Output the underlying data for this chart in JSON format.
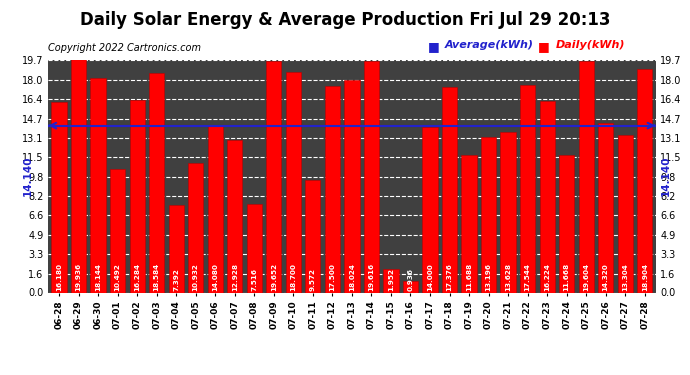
{
  "title": "Daily Solar Energy & Average Production Fri Jul 29 20:13",
  "copyright": "Copyright 2022 Cartronics.com",
  "average_label": "Average(kWh)",
  "daily_label": "Daily(kWh)",
  "average_value": 14.14,
  "average_text": "14.140",
  "categories": [
    "06-28",
    "06-29",
    "06-30",
    "07-01",
    "07-02",
    "07-03",
    "07-04",
    "07-05",
    "07-06",
    "07-07",
    "07-08",
    "07-09",
    "07-10",
    "07-11",
    "07-12",
    "07-13",
    "07-14",
    "07-15",
    "07-16",
    "07-17",
    "07-18",
    "07-19",
    "07-20",
    "07-21",
    "07-22",
    "07-23",
    "07-24",
    "07-25",
    "07-26",
    "07-27",
    "07-28"
  ],
  "values": [
    16.18,
    19.936,
    18.144,
    10.492,
    16.284,
    18.584,
    7.392,
    10.932,
    14.08,
    12.928,
    7.516,
    19.652,
    18.7,
    9.572,
    17.5,
    18.024,
    19.616,
    1.952,
    0.936,
    14.0,
    17.376,
    11.688,
    13.196,
    13.628,
    17.544,
    16.224,
    11.668,
    19.604,
    14.32,
    13.304,
    18.904
  ],
  "bar_color": "#ff0000",
  "bar_edge_color": "#bb0000",
  "avg_line_color": "#2222cc",
  "avg_text_color": "#2222cc",
  "title_color": "#000000",
  "copyright_color": "#000000",
  "daily_label_color": "#ff0000",
  "avg_label_color": "#2222cc",
  "bar_text_color": "#ffffff",
  "ylim": [
    0.0,
    19.7
  ],
  "yticks": [
    0.0,
    1.6,
    3.3,
    4.9,
    6.6,
    8.2,
    9.8,
    11.5,
    13.1,
    14.7,
    16.4,
    18.0,
    19.7
  ],
  "plot_bg_color": "#404040",
  "figure_bg_color": "#ffffff",
  "grid_color": "#ffffff",
  "title_fontsize": 12,
  "copyright_fontsize": 7,
  "bar_label_fontsize": 5.2,
  "ytick_fontsize": 7,
  "xtick_fontsize": 6.5,
  "legend_fontsize": 8
}
